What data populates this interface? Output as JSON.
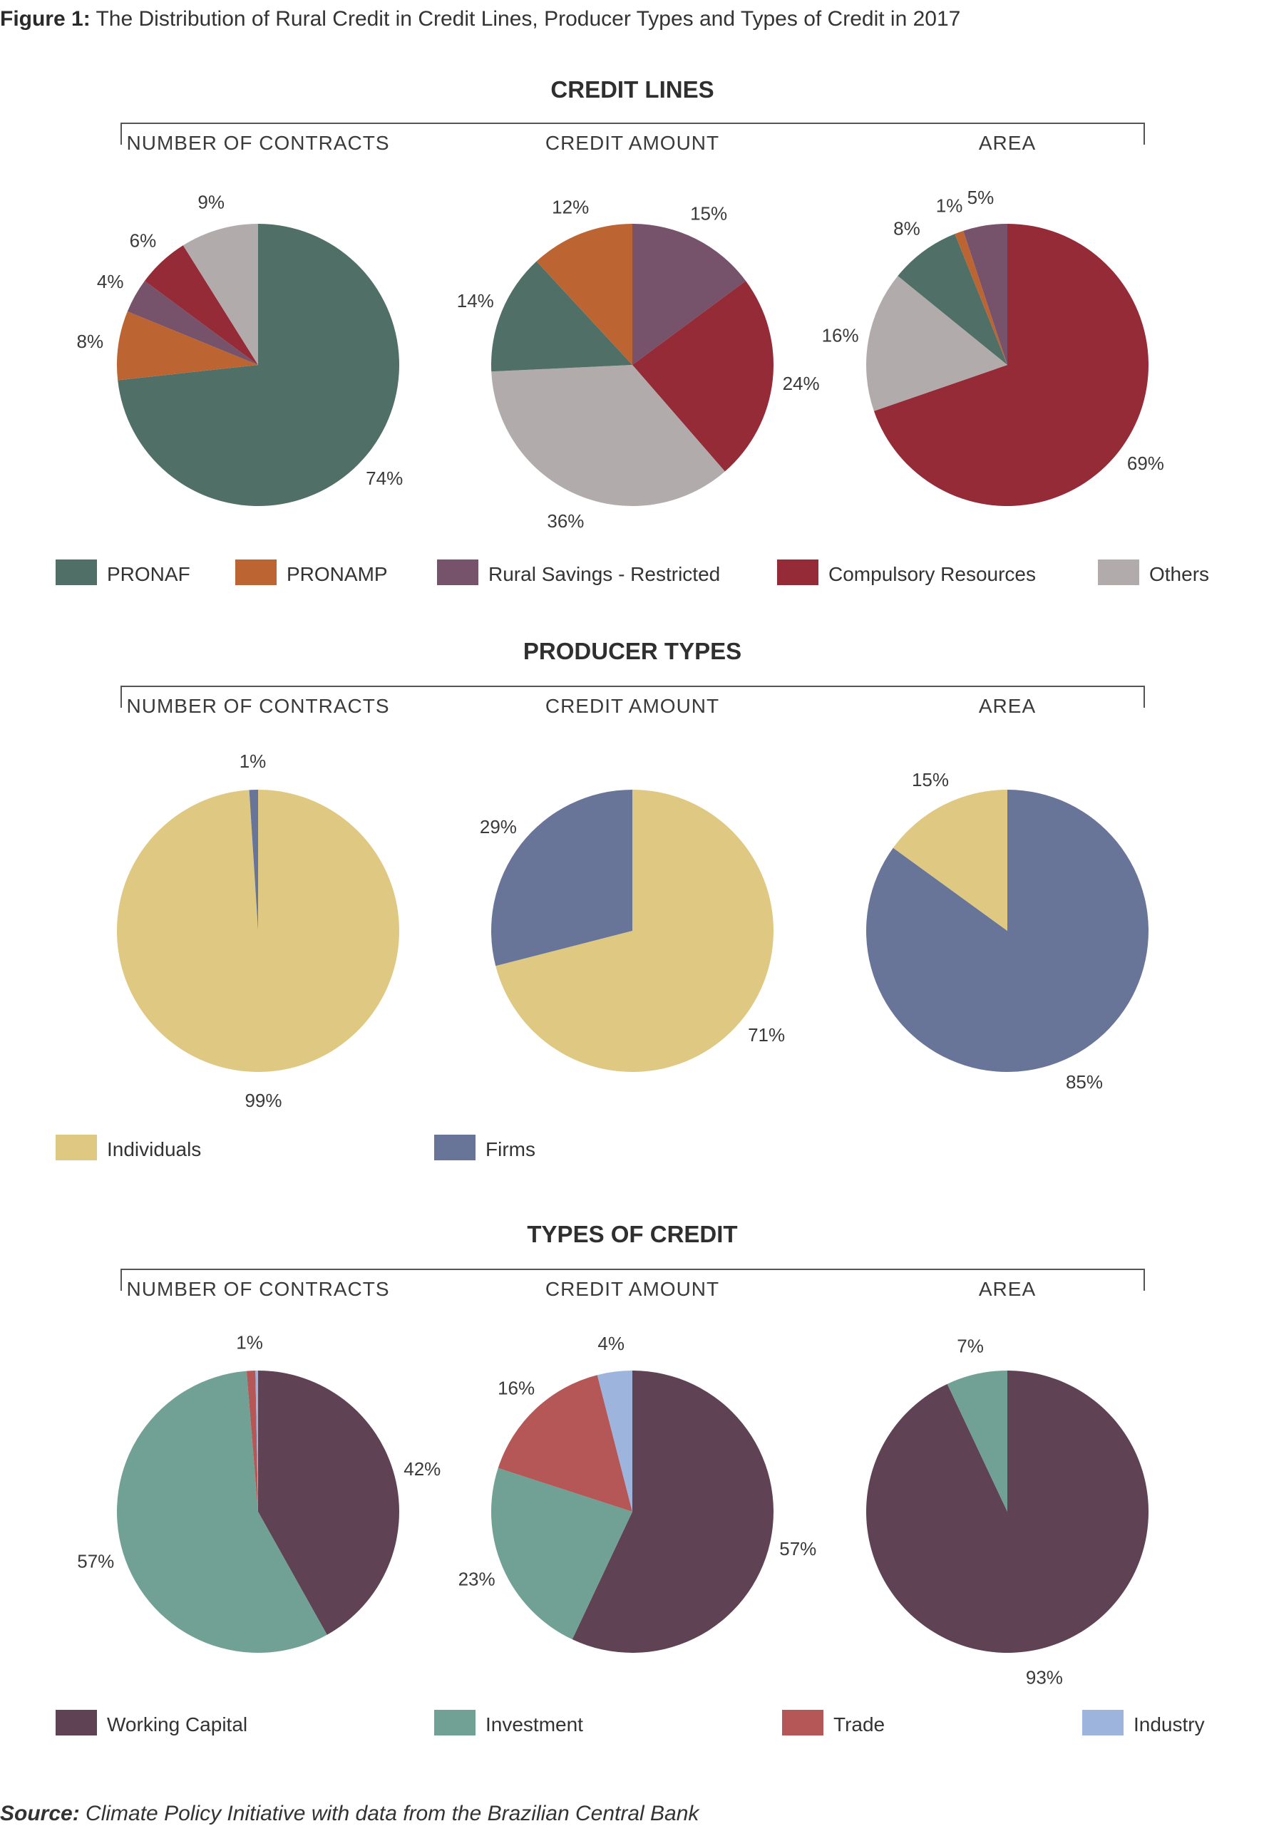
{
  "figure": {
    "label": "Figure 1:",
    "title": "The Distribution of Rural Credit in Credit Lines, Producer Types and Types of Credit in 2017"
  },
  "source": {
    "label": "Source:",
    "text": "Climate Policy Initiative with data from the Brazilian Central Bank"
  },
  "chart_data": [
    {
      "type": "pie",
      "section": "CREDIT LINES",
      "columns": [
        "NUMBER OF CONTRACTS",
        "CREDIT AMOUNT",
        "AREA"
      ],
      "legend": [
        {
          "name": "PRONAF",
          "color": "#4f6f67"
        },
        {
          "name": "PRONAMP",
          "color": "#bc6533"
        },
        {
          "name": "Rural Savings - Restricted",
          "color": "#76526b"
        },
        {
          "name": "Compulsory Resources",
          "color": "#962b38"
        },
        {
          "name": "Others",
          "color": "#b1acab"
        }
      ],
      "pies": [
        {
          "column": "NUMBER OF CONTRACTS",
          "slices": [
            {
              "category": "PRONAF",
              "value": 74,
              "label": "74%"
            },
            {
              "category": "PRONAMP",
              "value": 8,
              "label": "8%"
            },
            {
              "category": "Rural Savings - Restricted",
              "value": 4,
              "label": "4%"
            },
            {
              "category": "Compulsory Resources",
              "value": 6,
              "label": "6%"
            },
            {
              "category": "Others",
              "value": 9,
              "label": "9%"
            }
          ]
        },
        {
          "column": "CREDIT AMOUNT",
          "slices": [
            {
              "category": "Rural Savings - Restricted",
              "value": 15,
              "label": "15%"
            },
            {
              "category": "Compulsory Resources",
              "value": 24,
              "label": "24%"
            },
            {
              "category": "Others",
              "value": 36,
              "label": "36%"
            },
            {
              "category": "PRONAF",
              "value": 14,
              "label": "14%"
            },
            {
              "category": "PRONAMP",
              "value": 12,
              "label": "12%"
            }
          ]
        },
        {
          "column": "AREA",
          "slices": [
            {
              "category": "Compulsory Resources",
              "value": 69,
              "label": "69%"
            },
            {
              "category": "Others",
              "value": 16,
              "label": "16%"
            },
            {
              "category": "PRONAF",
              "value": 8,
              "label": "8%"
            },
            {
              "category": "PRONAMP",
              "value": 1,
              "label": "1%"
            },
            {
              "category": "Rural Savings - Restricted",
              "value": 5,
              "label": "5%"
            }
          ]
        }
      ]
    },
    {
      "type": "pie",
      "section": "PRODUCER TYPES",
      "columns": [
        "NUMBER OF CONTRACTS",
        "CREDIT AMOUNT",
        "AREA"
      ],
      "legend": [
        {
          "name": "Individuals",
          "color": "#dfc982"
        },
        {
          "name": "Firms",
          "color": "#687599"
        }
      ],
      "pies": [
        {
          "column": "NUMBER OF CONTRACTS",
          "slices": [
            {
              "category": "Individuals",
              "value": 99,
              "label": "99%"
            },
            {
              "category": "Firms",
              "value": 1,
              "label": "1%"
            }
          ]
        },
        {
          "column": "CREDIT AMOUNT",
          "slices": [
            {
              "category": "Individuals",
              "value": 71,
              "label": "71%"
            },
            {
              "category": "Firms",
              "value": 29,
              "label": "29%"
            }
          ]
        },
        {
          "column": "AREA",
          "slices": [
            {
              "category": "Firms",
              "value": 85,
              "label": "85%"
            },
            {
              "category": "Individuals",
              "value": 15,
              "label": "15%"
            }
          ]
        }
      ]
    },
    {
      "type": "pie",
      "section": "TYPES OF CREDIT",
      "columns": [
        "NUMBER OF CONTRACTS",
        "CREDIT AMOUNT",
        "AREA"
      ],
      "legend": [
        {
          "name": "Working Capital",
          "color": "#604255"
        },
        {
          "name": "Investment",
          "color": "#71a194"
        },
        {
          "name": "Trade",
          "color": "#b55657"
        },
        {
          "name": "Industry",
          "color": "#9db5dc"
        }
      ],
      "pies": [
        {
          "column": "NUMBER OF CONTRACTS",
          "slices": [
            {
              "category": "Working Capital",
              "value": 42,
              "label": "42%"
            },
            {
              "category": "Investment",
              "value": 57,
              "label": "57%"
            },
            {
              "category": "Trade",
              "value": 1,
              "label": "1%"
            },
            {
              "category": "Industry",
              "value": 0.3,
              "label": ""
            }
          ]
        },
        {
          "column": "CREDIT AMOUNT",
          "slices": [
            {
              "category": "Working Capital",
              "value": 57,
              "label": "57%"
            },
            {
              "category": "Investment",
              "value": 23,
              "label": "23%"
            },
            {
              "category": "Trade",
              "value": 16,
              "label": "16%"
            },
            {
              "category": "Industry",
              "value": 4,
              "label": "4%"
            }
          ]
        },
        {
          "column": "AREA",
          "slices": [
            {
              "category": "Working Capital",
              "value": 93,
              "label": "93%"
            },
            {
              "category": "Investment",
              "value": 7,
              "label": "7%"
            }
          ]
        }
      ]
    }
  ]
}
